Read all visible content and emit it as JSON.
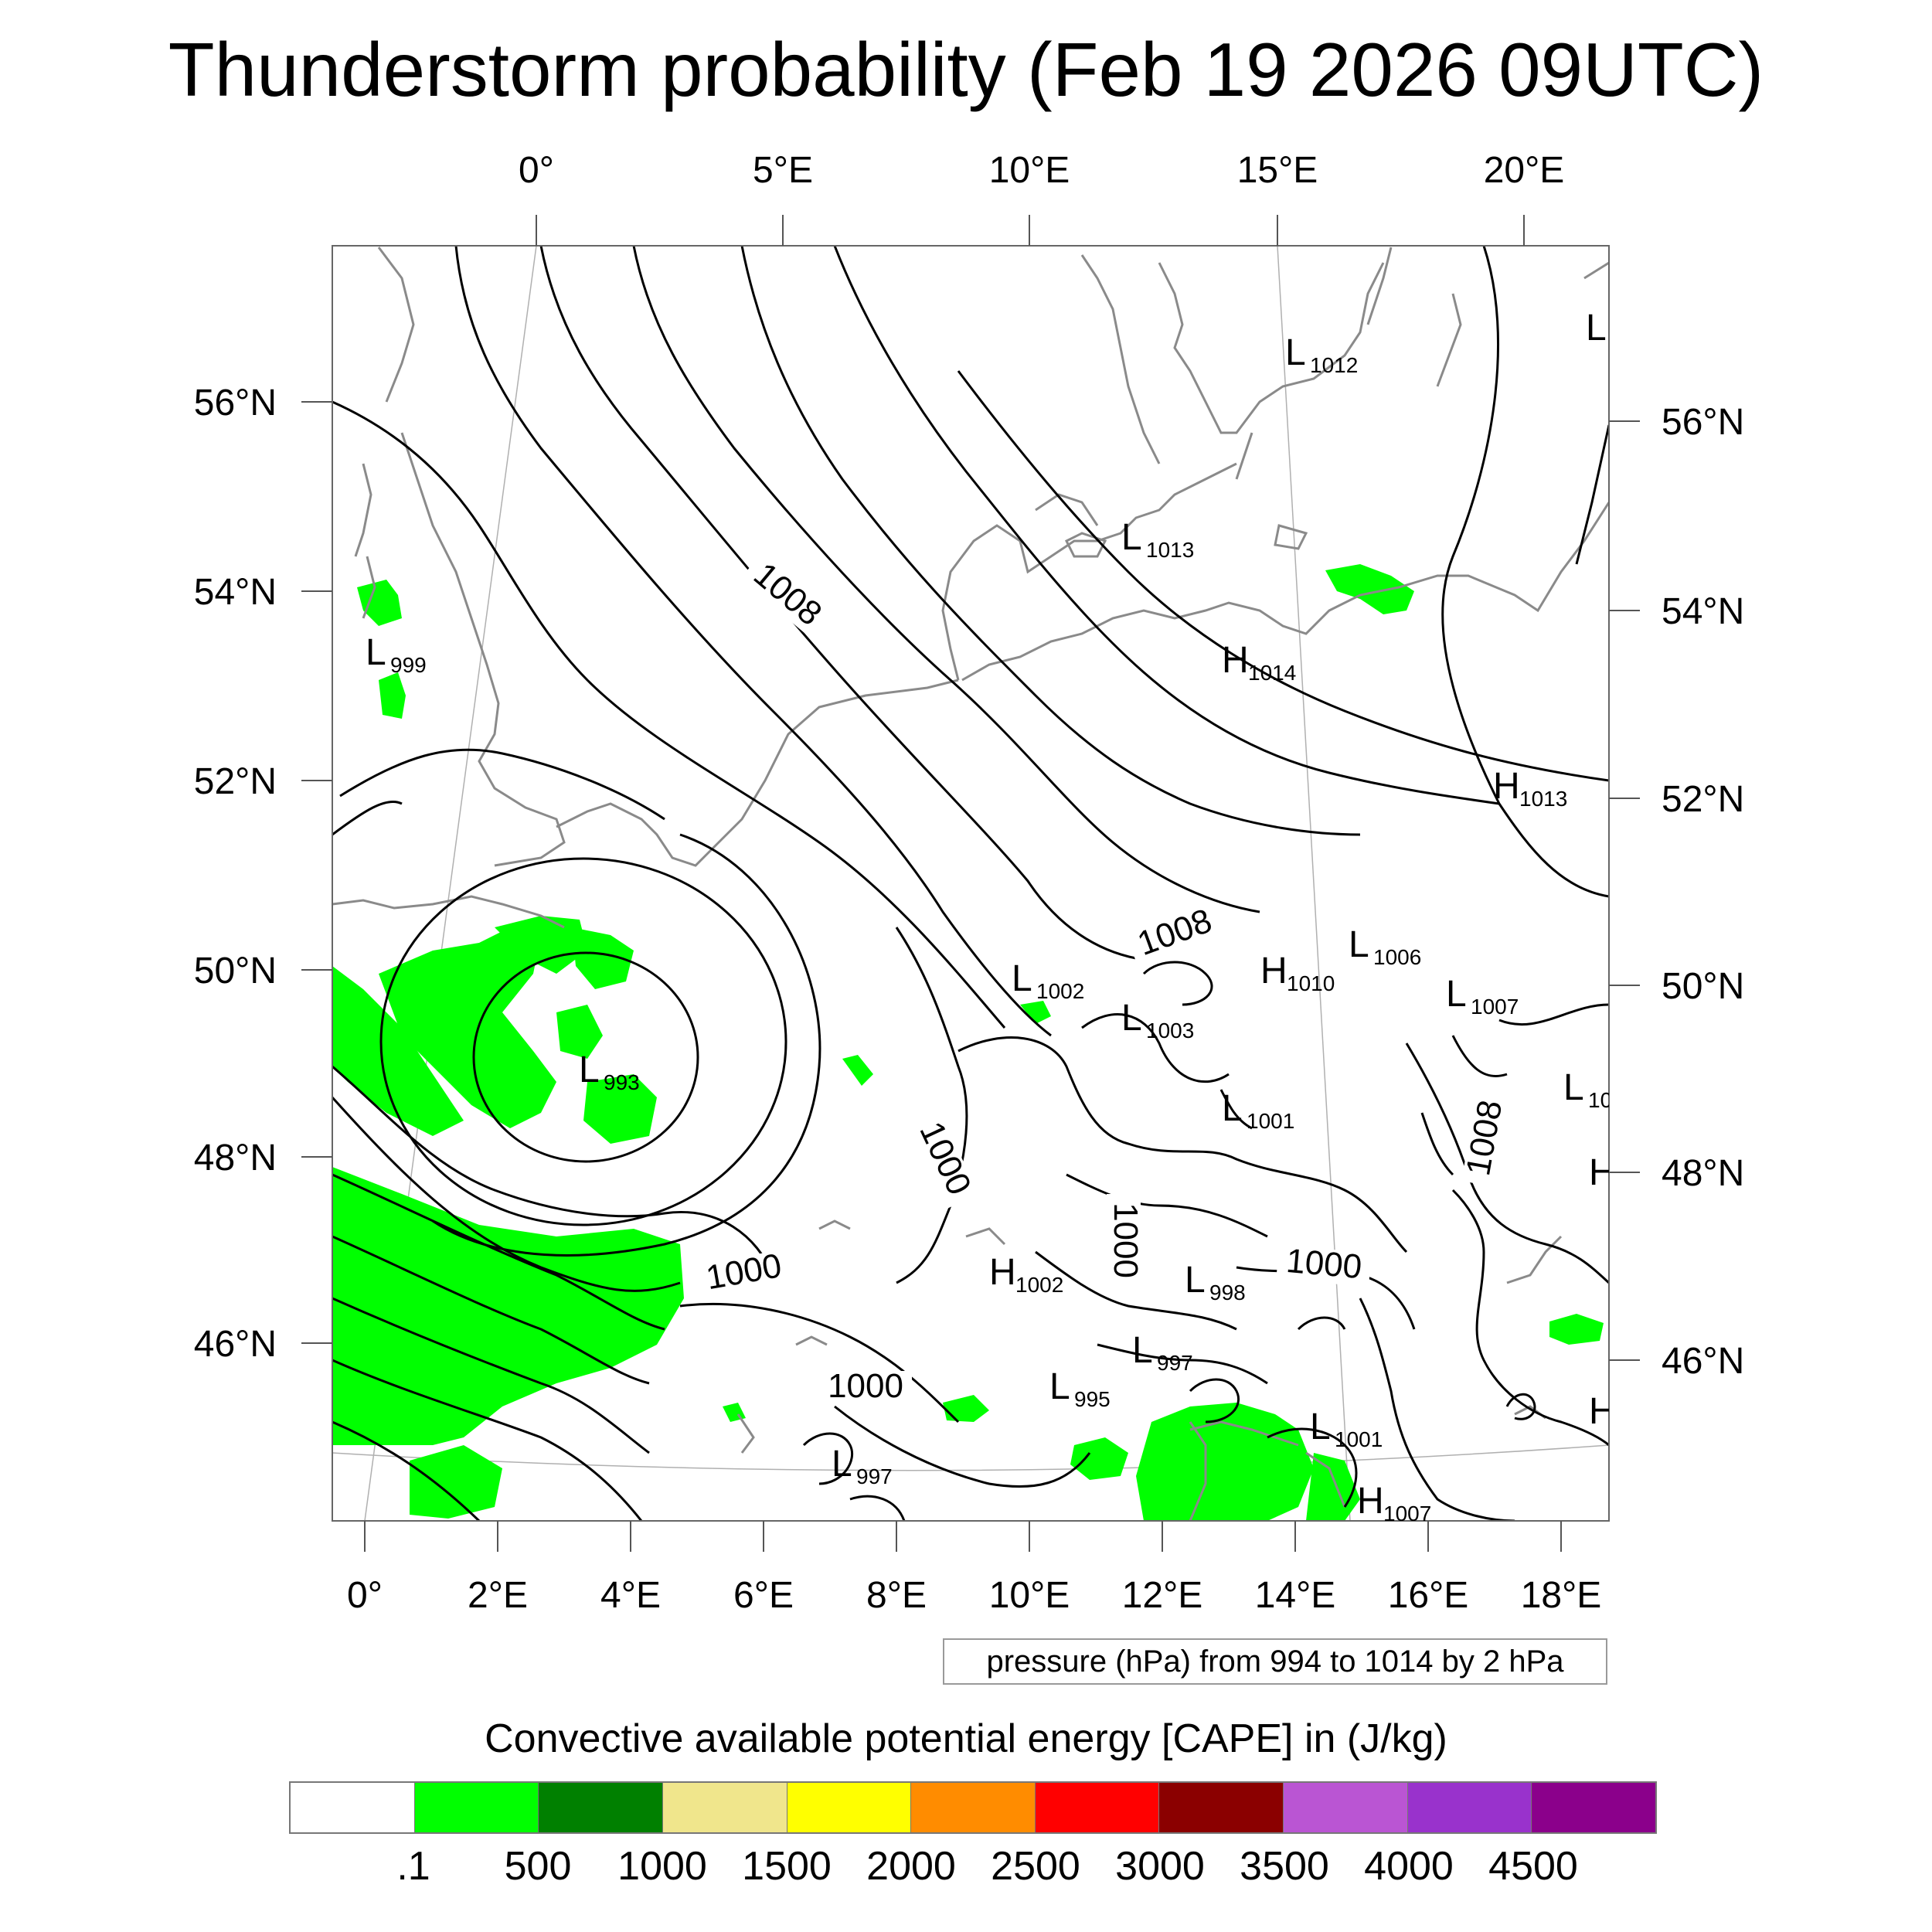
{
  "title": "Thunderstorm probability (Feb 19 2026 09UTC)",
  "map": {
    "top_lon_labels": [
      "0°",
      "5°E",
      "10°E",
      "15°E",
      "20°E"
    ],
    "bottom_lon_labels": [
      "0°",
      "2°E",
      "4°E",
      "6°E",
      "8°E",
      "10°E",
      "12°E",
      "14°E",
      "16°E",
      "18°E"
    ],
    "left_lat_labels": [
      "56°N",
      "54°N",
      "52°N",
      "50°N",
      "48°N",
      "46°N"
    ],
    "right_lat_labels": [
      "56°N",
      "54°N",
      "52°N",
      "50°N",
      "48°N",
      "46°N"
    ],
    "contour_labels": [
      "1008",
      "1008",
      "1008",
      "1000",
      "1000",
      "1000",
      "1000",
      "1000"
    ],
    "pressure_centers": [
      {
        "letter": "L",
        "value": "1012"
      },
      {
        "letter": "L",
        "value": "1013"
      },
      {
        "letter": "H",
        "value": "1014"
      },
      {
        "letter": "L",
        "value": "999"
      },
      {
        "letter": "H",
        "value": "1013"
      },
      {
        "letter": "L",
        "value": "1006"
      },
      {
        "letter": "H",
        "value": "1010"
      },
      {
        "letter": "L",
        "value": "1007"
      },
      {
        "letter": "L",
        "value": "1002"
      },
      {
        "letter": "L",
        "value": "1003"
      },
      {
        "letter": "L",
        "value": "993"
      },
      {
        "letter": "L",
        "value": "1001"
      },
      {
        "letter": "L",
        "value": "10"
      },
      {
        "letter": "H",
        "value": "1002"
      },
      {
        "letter": "L",
        "value": "998"
      },
      {
        "letter": "L",
        "value": "997"
      },
      {
        "letter": "L",
        "value": "995"
      },
      {
        "letter": "L",
        "value": "1001"
      },
      {
        "letter": "L",
        "value": "997"
      },
      {
        "letter": "H",
        "value": "1007"
      },
      {
        "letter": "L",
        "value": ""
      },
      {
        "letter": "H",
        "value": ""
      },
      {
        "letter": "H",
        "value": ""
      }
    ],
    "colors": {
      "contour": "#000000",
      "coastline": "#8a8a8a",
      "cape_fill": "#00ff00",
      "graticule": "#b0b0b0"
    }
  },
  "pressure_note": "pressure (hPa) from 994 to 1014 by 2 hPa",
  "cape": {
    "title": "Convective available potential energy [CAPE] in (J/kg)",
    "colors": [
      "#ffffff",
      "#00ff00",
      "#008000",
      "#f0e68c",
      "#ffff00",
      "#ff8c00",
      "#ff0000",
      "#8b0000",
      "#ba55d3",
      "#9932cc",
      "#8b008b"
    ],
    "labels": [
      ".1",
      "500",
      "1000",
      "1500",
      "2000",
      "2500",
      "3000",
      "3500",
      "4000",
      "4500"
    ]
  }
}
